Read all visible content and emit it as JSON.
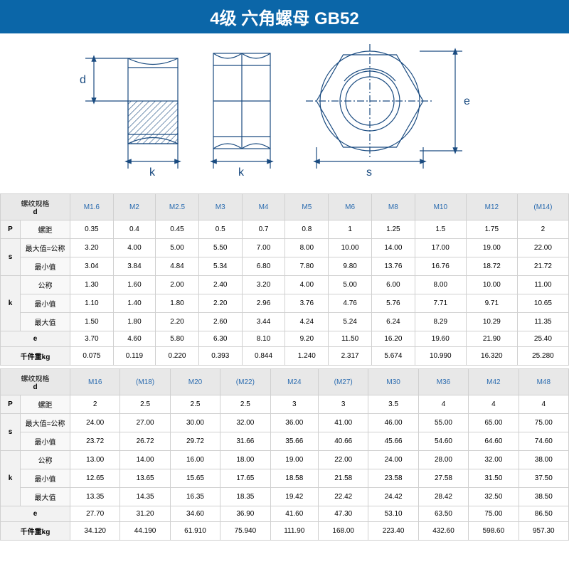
{
  "header": {
    "title": "4级 六角螺母 GB52",
    "bg_color": "#0b66a8",
    "text_color": "#ffffff",
    "fontsize": 24
  },
  "diagram": {
    "stroke": "#1a4b80",
    "stroke_width": 1.2,
    "label_d": "d",
    "label_k": "k",
    "label_k2": "k",
    "label_s": "s",
    "label_e": "e",
    "label_fontsize": 14,
    "hatch_color": "#1a4b80"
  },
  "table1": {
    "header_spec": "螺纹规格",
    "header_d": "d",
    "sizes": [
      "M1.6",
      "M2",
      "M2.5",
      "M3",
      "M4",
      "M5",
      "M6",
      "M8",
      "M10",
      "M12",
      "(M14)"
    ],
    "rows": [
      {
        "g": "P",
        "label": "螺距",
        "vals": [
          "0.35",
          "0.4",
          "0.45",
          "0.5",
          "0.7",
          "0.8",
          "1",
          "1.25",
          "1.5",
          "1.75",
          "2"
        ]
      },
      {
        "g": "s",
        "label": "最大值=公称",
        "vals": [
          "3.20",
          "4.00",
          "5.00",
          "5.50",
          "7.00",
          "8.00",
          "10.00",
          "14.00",
          "17.00",
          "19.00",
          "22.00"
        ]
      },
      {
        "g": "s",
        "label": "最小值",
        "vals": [
          "3.04",
          "3.84",
          "4.84",
          "5.34",
          "6.80",
          "7.80",
          "9.80",
          "13.76",
          "16.76",
          "18.72",
          "21.72"
        ]
      },
      {
        "g": "k",
        "label": "公称",
        "vals": [
          "1.30",
          "1.60",
          "2.00",
          "2.40",
          "3.20",
          "4.00",
          "5.00",
          "6.00",
          "8.00",
          "10.00",
          "11.00"
        ]
      },
      {
        "g": "k",
        "label": "最小值",
        "vals": [
          "1.10",
          "1.40",
          "1.80",
          "2.20",
          "2.96",
          "3.76",
          "4.76",
          "5.76",
          "7.71",
          "9.71",
          "10.65"
        ]
      },
      {
        "g": "k",
        "label": "最大值",
        "vals": [
          "1.50",
          "1.80",
          "2.20",
          "2.60",
          "3.44",
          "4.24",
          "5.24",
          "6.24",
          "8.29",
          "10.29",
          "11.35"
        ]
      },
      {
        "g": "",
        "label": "e",
        "vals": [
          "3.70",
          "4.60",
          "5.80",
          "6.30",
          "8.10",
          "9.20",
          "11.50",
          "16.20",
          "19.60",
          "21.90",
          "25.40"
        ]
      },
      {
        "g": "",
        "label": "千件重kg",
        "vals": [
          "0.075",
          "0.119",
          "0.220",
          "0.393",
          "0.844",
          "1.240",
          "2.317",
          "5.674",
          "10.990",
          "16.320",
          "25.280"
        ]
      }
    ]
  },
  "table2": {
    "header_spec": "螺纹规格",
    "header_d": "d",
    "sizes": [
      "M16",
      "(M18)",
      "M20",
      "(M22)",
      "M24",
      "(M27)",
      "M30",
      "M36",
      "M42",
      "M48"
    ],
    "rows": [
      {
        "g": "P",
        "label": "螺距",
        "vals": [
          "2",
          "2.5",
          "2.5",
          "2.5",
          "3",
          "3",
          "3.5",
          "4",
          "4",
          "4"
        ]
      },
      {
        "g": "s",
        "label": "最大值=公称",
        "vals": [
          "24.00",
          "27.00",
          "30.00",
          "32.00",
          "36.00",
          "41.00",
          "46.00",
          "55.00",
          "65.00",
          "75.00"
        ]
      },
      {
        "g": "s",
        "label": "最小值",
        "vals": [
          "23.72",
          "26.72",
          "29.72",
          "31.66",
          "35.66",
          "40.66",
          "45.66",
          "54.60",
          "64.60",
          "74.60"
        ]
      },
      {
        "g": "k",
        "label": "公称",
        "vals": [
          "13.00",
          "14.00",
          "16.00",
          "18.00",
          "19.00",
          "22.00",
          "24.00",
          "28.00",
          "32.00",
          "38.00"
        ]
      },
      {
        "g": "k",
        "label": "最小值",
        "vals": [
          "12.65",
          "13.65",
          "15.65",
          "17.65",
          "18.58",
          "21.58",
          "23.58",
          "27.58",
          "31.50",
          "37.50"
        ]
      },
      {
        "g": "k",
        "label": "最大值",
        "vals": [
          "13.35",
          "14.35",
          "16.35",
          "18.35",
          "19.42",
          "22.42",
          "24.42",
          "28.42",
          "32.50",
          "38.50"
        ]
      },
      {
        "g": "",
        "label": "e",
        "vals": [
          "27.70",
          "31.20",
          "34.60",
          "36.90",
          "41.60",
          "47.30",
          "53.10",
          "63.50",
          "75.00",
          "86.50"
        ]
      },
      {
        "g": "",
        "label": "千件重kg",
        "vals": [
          "34.120",
          "44.190",
          "61.910",
          "75.940",
          "111.90",
          "168.00",
          "223.40",
          "432.60",
          "598.60",
          "957.30"
        ]
      }
    ]
  },
  "colors": {
    "size_text": "#2b6cb0",
    "border": "#d0d0d0",
    "header_bg": "#e8e8e8",
    "subheader_bg": "#f8f8f8"
  }
}
